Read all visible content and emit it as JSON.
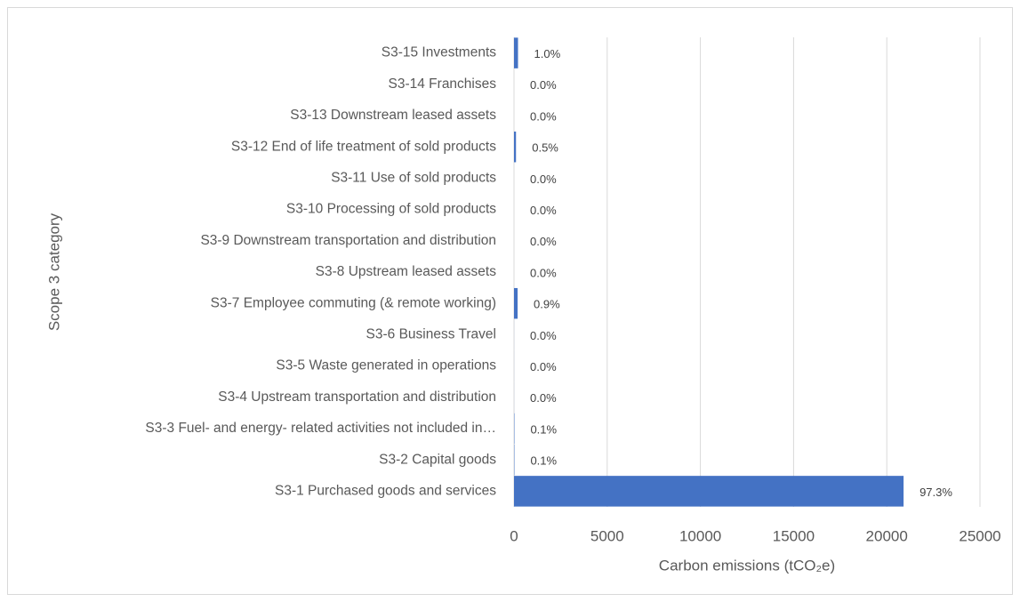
{
  "chart_data": {
    "type": "bar",
    "orientation": "horizontal",
    "x_label": "Carbon emissions (tCO₂e)",
    "y_label": "Scope 3 category",
    "categories": [
      "S3-1 Purchased goods and services",
      "S3-2 Capital goods",
      "S3-3 Fuel- and energy- related activities not included in…",
      "S3-4 Upstream transportation and distribution",
      "S3-5 Waste generated in operations",
      "S3-6 Business Travel",
      "S3-7 Employee commuting (& remote working)",
      "S3-8 Upstream leased assets",
      "S3-9 Downstream transportation and distribution",
      "S3-10 Processing of sold products",
      "S3-11 Use of sold products",
      "S3-12 End of life treatment of sold products",
      "S3-13 Downstream leased assets",
      "S3-14 Franchises",
      "S3-15 Investments"
    ],
    "values": [
      20900,
      21,
      21,
      2,
      2,
      2,
      193,
      0,
      0,
      0,
      0,
      107,
      0,
      0,
      215
    ],
    "value_labels": [
      "97.3%",
      "0.1%",
      "0.1%",
      "0.0%",
      "0.0%",
      "0.0%",
      "0.9%",
      "0.0%",
      "0.0%",
      "0.0%",
      "0.0%",
      "0.5%",
      "0.0%",
      "0.0%",
      "1.0%"
    ],
    "color": "#4472c4",
    "xlim": [
      0,
      25000
    ],
    "xticks": [
      0,
      5000,
      10000,
      15000,
      20000,
      25000
    ],
    "grid": true
  }
}
